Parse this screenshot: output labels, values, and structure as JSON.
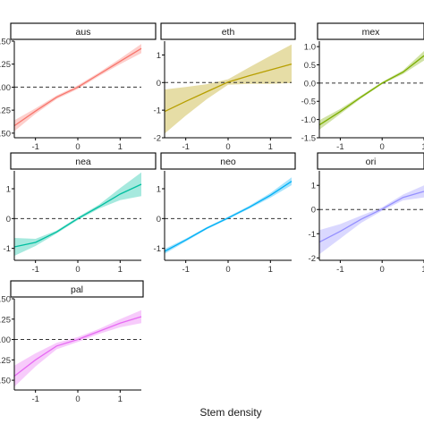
{
  "chart_data": {
    "type": "line",
    "layout": "faceted small multiples with confidence bands",
    "xlabel": "Stem density",
    "ylabel": "",
    "reference_line_y": 0,
    "grid": false,
    "facets": [
      {
        "name": "aus",
        "color": "#F8766D",
        "xlim": [
          -1.5,
          1.5
        ],
        "xticks": [
          -1,
          0,
          1
        ],
        "xtick_labels": [
          "-1",
          "0",
          "1"
        ],
        "ylim": [
          -0.55,
          0.5
        ],
        "yticks": [
          -0.5,
          -0.25,
          0,
          0.25,
          0.5
        ],
        "ytick_labels": [
          ".50",
          ".25",
          ".00",
          ".25",
          ".50"
        ],
        "x": [
          -1.5,
          -1,
          -0.5,
          0,
          0.5,
          1,
          1.5
        ],
        "y": [
          -0.42,
          -0.26,
          -0.11,
          0.0,
          0.14,
          0.28,
          0.42
        ],
        "lower": [
          -0.48,
          -0.29,
          -0.13,
          -0.02,
          0.12,
          0.25,
          0.37
        ],
        "upper": [
          -0.36,
          -0.23,
          -0.09,
          0.02,
          0.16,
          0.31,
          0.47
        ]
      },
      {
        "name": "eth",
        "color": "#B79F00",
        "xlim": [
          -1.5,
          1.5
        ],
        "xticks": [
          -1,
          0,
          1
        ],
        "xtick_labels": [
          "-1",
          "0",
          "1"
        ],
        "ylim": [
          -2.0,
          1.5
        ],
        "yticks": [
          -2,
          -1,
          0,
          1
        ],
        "ytick_labels": [
          "-2",
          "-1",
          "0",
          "1"
        ],
        "x": [
          -1.5,
          -1,
          -0.5,
          0,
          0.5,
          1,
          1.5
        ],
        "y": [
          -1.05,
          -0.68,
          -0.33,
          0.02,
          0.25,
          0.46,
          0.67
        ],
        "lower": [
          -1.85,
          -1.2,
          -0.6,
          -0.08,
          -0.05,
          -0.05,
          -0.02
        ],
        "upper": [
          -0.25,
          -0.16,
          -0.06,
          0.12,
          0.55,
          0.97,
          1.38
        ]
      },
      {
        "name": "mex",
        "color": "#7CAE00",
        "xlim": [
          -1.5,
          1.0
        ],
        "xticks": [
          -1,
          0,
          1
        ],
        "xtick_labels": [
          "-1",
          "0",
          "1"
        ],
        "ylim": [
          -1.5,
          1.15
        ],
        "yticks": [
          -1.5,
          -1.0,
          -0.5,
          0.0,
          0.5,
          1.0
        ],
        "ytick_labels": [
          "-1.5",
          "-1.0",
          "-0.5",
          "0.0",
          "0.5",
          "1.0"
        ],
        "x": [
          -1.5,
          -1,
          -0.5,
          0,
          0.5,
          1
        ],
        "y": [
          -1.15,
          -0.78,
          -0.38,
          0.0,
          0.3,
          0.75
        ],
        "lower": [
          -1.28,
          -0.85,
          -0.42,
          -0.03,
          0.25,
          0.62
        ],
        "upper": [
          -1.02,
          -0.71,
          -0.34,
          0.03,
          0.35,
          0.88
        ]
      },
      {
        "name": "nea",
        "color": "#00BFA0",
        "xlim": [
          -1.5,
          1.5
        ],
        "xticks": [
          -1,
          0,
          1
        ],
        "xtick_labels": [
          "-1",
          "0",
          "1"
        ],
        "ylim": [
          -1.4,
          1.6
        ],
        "yticks": [
          -1,
          0,
          1
        ],
        "ytick_labels": [
          "-1",
          "0",
          "1"
        ],
        "x": [
          -1.5,
          -1,
          -0.5,
          0,
          0.5,
          1,
          1.5
        ],
        "y": [
          -0.95,
          -0.8,
          -0.45,
          0.0,
          0.4,
          0.82,
          1.15
        ],
        "lower": [
          -1.25,
          -0.92,
          -0.5,
          -0.05,
          0.33,
          0.62,
          0.75
        ],
        "upper": [
          -0.65,
          -0.68,
          -0.4,
          0.05,
          0.47,
          1.02,
          1.55
        ]
      },
      {
        "name": "neo",
        "color": "#00B0F6",
        "xlim": [
          -1.5,
          1.5
        ],
        "xticks": [
          -1,
          0,
          1
        ],
        "xtick_labels": [
          "-1",
          "0",
          "1"
        ],
        "ylim": [
          -1.4,
          1.6
        ],
        "yticks": [
          -1,
          0,
          1
        ],
        "ytick_labels": [
          "-1",
          "0",
          "1"
        ],
        "x": [
          -1.5,
          -1,
          -0.5,
          0,
          0.5,
          1,
          1.5
        ],
        "y": [
          -1.1,
          -0.72,
          -0.32,
          0.02,
          0.38,
          0.78,
          1.25
        ],
        "lower": [
          -1.18,
          -0.77,
          -0.36,
          -0.02,
          0.33,
          0.7,
          1.12
        ],
        "upper": [
          -1.02,
          -0.67,
          -0.28,
          0.06,
          0.43,
          0.86,
          1.38
        ]
      },
      {
        "name": "ori",
        "color": "#9590FF",
        "xlim": [
          -1.5,
          1.0
        ],
        "xticks": [
          -1,
          0,
          1
        ],
        "xtick_labels": [
          "-1",
          "0",
          "1"
        ],
        "ylim": [
          -2.1,
          1.6
        ],
        "yticks": [
          -2,
          -1,
          0,
          1
        ],
        "ytick_labels": [
          "-2",
          "-1",
          "0",
          "1"
        ],
        "x": [
          -1.5,
          -1,
          -0.5,
          0,
          0.5,
          1
        ],
        "y": [
          -1.35,
          -0.9,
          -0.4,
          0.02,
          0.5,
          0.75
        ],
        "lower": [
          -1.85,
          -1.2,
          -0.55,
          -0.05,
          0.38,
          0.5
        ],
        "upper": [
          -0.85,
          -0.6,
          -0.25,
          0.09,
          0.62,
          1.0
        ]
      },
      {
        "name": "pal",
        "color": "#E76BF3",
        "xlim": [
          -1.5,
          1.5
        ],
        "xticks": [
          -1,
          0,
          1
        ],
        "xtick_labels": [
          "-1",
          "0",
          "1"
        ],
        "ylim": [
          -0.62,
          0.5
        ],
        "yticks": [
          -0.5,
          -0.25,
          0,
          0.25,
          0.5
        ],
        "ytick_labels": [
          ".50",
          ".25",
          ".00",
          ".25",
          ".50"
        ],
        "x": [
          -1.5,
          -1,
          -0.5,
          0,
          0.5,
          1,
          1.5
        ],
        "y": [
          -0.45,
          -0.25,
          -0.08,
          0.0,
          0.1,
          0.2,
          0.28
        ],
        "lower": [
          -0.58,
          -0.33,
          -0.12,
          -0.03,
          0.07,
          0.15,
          0.2
        ],
        "upper": [
          -0.32,
          -0.17,
          -0.04,
          0.03,
          0.13,
          0.25,
          0.36
        ]
      }
    ]
  }
}
